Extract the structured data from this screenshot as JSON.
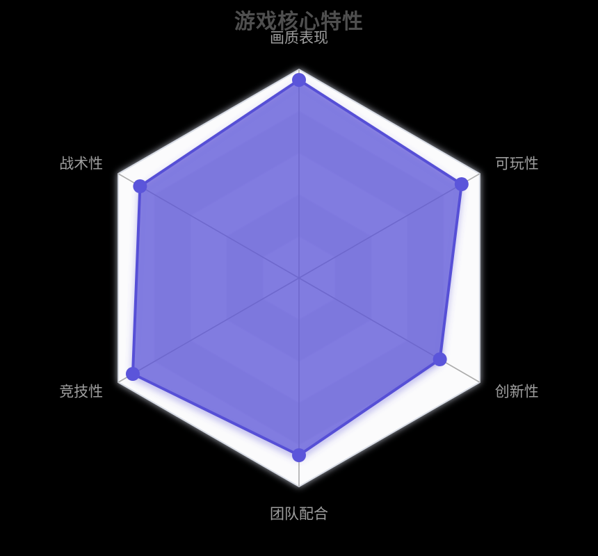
{
  "chart_data": {
    "type": "radar",
    "shape": "hexagon",
    "title": "游戏核心特性",
    "legend_position": "none",
    "rings": 5,
    "indicators": [
      {
        "name": "画质表现",
        "max": 100
      },
      {
        "name": "可玩性",
        "max": 100
      },
      {
        "name": "创新性",
        "max": 100
      },
      {
        "name": "团队配合",
        "max": 100
      },
      {
        "name": "竞技性",
        "max": 100
      },
      {
        "name": "战术性",
        "max": 100
      }
    ],
    "series": [
      {
        "name": "游戏核心特性",
        "values": [
          95,
          90,
          78,
          85,
          92,
          88
        ]
      }
    ],
    "colors": {
      "background": "#000000",
      "title": "#4f4f4f",
      "axis_label": "#9e9e9e",
      "band_light": "#fbfbfc",
      "band_dark": "#eaeaef",
      "outer_edge": "#d9dde6",
      "ring_line": "#f2f2f7",
      "spoke": "#ababab",
      "line": "#5650d6",
      "fill": "rgba(91,84,216,0.66)",
      "dot": "#5b55da"
    }
  }
}
